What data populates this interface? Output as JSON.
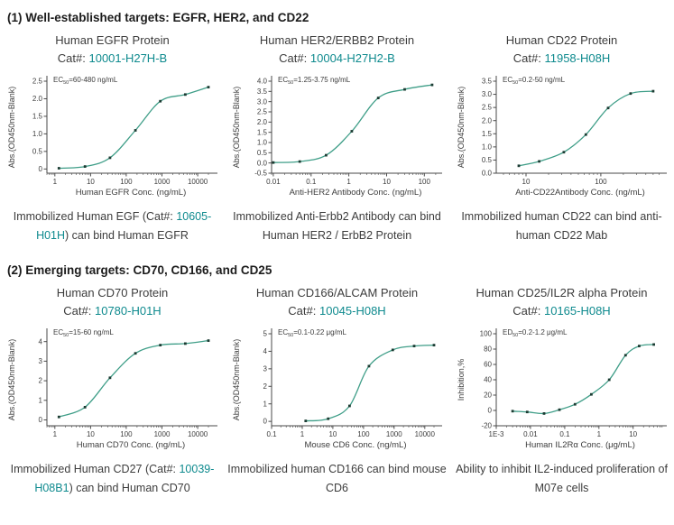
{
  "colors": {
    "curve": "#3f9e88",
    "marker": "#1c3c33",
    "accent_teal": "#0e8a8e",
    "axis": "#4a4a4a",
    "text": "#3c3c3c"
  },
  "sections": [
    {
      "header": "(1) Well-established targets: EGFR, HER2, and CD22",
      "panels": [
        {
          "title": "Human EGFR Protein",
          "cat_label": "Cat#:",
          "cat_number": "10001-H27H-B",
          "caption": {
            "pre": "Immobilized Human EGF (Cat#: ",
            "cat": "10605-H01H",
            "post": ") can bind Human EGFR"
          }
        },
        {
          "title": "Human HER2/ERBB2 Protein",
          "cat_label": "Cat#:",
          "cat_number": "10004-H27H2-B",
          "caption": {
            "pre": "Immobilized Anti-Erbb2 Antibody can bind Human HER2 / ErbB2 Protein",
            "cat": "",
            "post": ""
          }
        },
        {
          "title": "Human CD22 Protein",
          "cat_label": "Cat#:",
          "cat_number": "11958-H08H",
          "caption": {
            "pre": "Immobilized human CD22 can bind anti-human CD22 Mab",
            "cat": "",
            "post": ""
          }
        }
      ]
    },
    {
      "header": "(2) Emerging targets: CD70, CD166, and CD25",
      "panels": [
        {
          "title": "Human CD70 Protein",
          "cat_label": "Cat#:",
          "cat_number": "10780-H01H",
          "caption": {
            "pre": "Immobilized Human CD27 (Cat#: ",
            "cat": "10039-H08B1",
            "post": ") can bind Human CD70"
          }
        },
        {
          "title": "Human CD166/ALCAM Protein",
          "cat_label": "Cat#:",
          "cat_number": "10045-H08H",
          "caption": {
            "pre": "Immobilized human CD166 can bind mouse CD6",
            "cat": "",
            "post": ""
          }
        },
        {
          "title": "Human CD25/IL2R alpha Protein",
          "cat_label": "Cat#:",
          "cat_number": "10165-H08H",
          "caption": {
            "pre": "Ability to inhibit IL2-induced proliferation of M07e cells",
            "cat": "",
            "post": ""
          }
        }
      ]
    }
  ],
  "chart_data": [
    {
      "type": "line",
      "title": "Human EGFR Protein ELISA binding curve",
      "ec_label": {
        "pre": "EC",
        "sub": "50",
        "rest": "=60-480 ng/mL"
      },
      "xlabel": "Human EGFR Conc. (ng/mL)",
      "ylabel": "Abs.(OD450nm-Blank)",
      "xscale": "log",
      "xlim": [
        0.6,
        30000
      ],
      "ylim": [
        -0.12,
        2.5
      ],
      "xticks": [
        {
          "v": 1,
          "l": "1"
        },
        {
          "v": 10,
          "l": "10"
        },
        {
          "v": 100,
          "l": "100"
        },
        {
          "v": 1000,
          "l": "1000"
        },
        {
          "v": 10000,
          "l": "10000"
        }
      ],
      "yticks": [
        {
          "v": 0,
          "l": "0"
        },
        {
          "v": 0.5,
          "l": "0.5"
        },
        {
          "v": 1,
          "l": "1.0"
        },
        {
          "v": 1.5,
          "l": "1.5"
        },
        {
          "v": 2,
          "l": "2.0"
        },
        {
          "v": 2.5,
          "l": "2.5"
        }
      ],
      "points": [
        [
          1.3,
          0.02
        ],
        [
          7,
          0.07
        ],
        [
          35,
          0.32
        ],
        [
          180,
          1.1
        ],
        [
          900,
          1.93
        ],
        [
          4500,
          2.12
        ],
        [
          20000,
          2.33
        ]
      ]
    },
    {
      "type": "line",
      "title": "Human HER2/ERBB2 Protein ELISA binding curve",
      "ec_label": {
        "pre": "EC",
        "sub": "50",
        "rest": "=1.25-3.75 ng/mL"
      },
      "xlabel": "Anti-HER2 Antibody Conc. (ng/mL)",
      "ylabel": "Abs.(OD450nm-Blank)",
      "xscale": "log",
      "xlim": [
        0.009,
        250
      ],
      "ylim": [
        -0.5,
        4.0
      ],
      "xticks": [
        {
          "v": 0.01,
          "l": "0.01"
        },
        {
          "v": 0.1,
          "l": "0.1"
        },
        {
          "v": 1,
          "l": "1"
        },
        {
          "v": 10,
          "l": "10"
        },
        {
          "v": 100,
          "l": "100"
        }
      ],
      "yticks": [
        {
          "v": -0.5,
          "l": "-0.5"
        },
        {
          "v": 0,
          "l": "0.0"
        },
        {
          "v": 0.5,
          "l": "0.5"
        },
        {
          "v": 1,
          "l": "1.0"
        },
        {
          "v": 1.5,
          "l": "1.5"
        },
        {
          "v": 2,
          "l": "2.0"
        },
        {
          "v": 2.5,
          "l": "2.5"
        },
        {
          "v": 3,
          "l": "3.0"
        },
        {
          "v": 3.5,
          "l": "3.5"
        },
        {
          "v": 4,
          "l": "4.0"
        }
      ],
      "points": [
        [
          0.01,
          0.02
        ],
        [
          0.05,
          0.07
        ],
        [
          0.25,
          0.38
        ],
        [
          1.2,
          1.55
        ],
        [
          6,
          3.18
        ],
        [
          30,
          3.6
        ],
        [
          160,
          3.82
        ]
      ]
    },
    {
      "type": "line",
      "title": "Human CD22 Protein ELISA binding curve",
      "ec_label": {
        "pre": "EC",
        "sub": "50",
        "rest": "=0.2-50 ng/mL"
      },
      "xlabel": "Anti-CD22Antibody Conc. (ng/mL)",
      "ylabel": "Abs.(OD450nm-Blank)",
      "xscale": "log",
      "xlim": [
        4,
        700
      ],
      "ylim": [
        0,
        3.5
      ],
      "xticks": [
        {
          "v": 10,
          "l": "10"
        },
        {
          "v": 100,
          "l": "100"
        }
      ],
      "yticks": [
        {
          "v": 0,
          "l": "0.0"
        },
        {
          "v": 0.5,
          "l": "0.5"
        },
        {
          "v": 1,
          "l": "1.0"
        },
        {
          "v": 1.5,
          "l": "1.5"
        },
        {
          "v": 2,
          "l": "2.0"
        },
        {
          "v": 2.5,
          "l": "2.5"
        },
        {
          "v": 3,
          "l": "3.0"
        },
        {
          "v": 3.5,
          "l": "3.5"
        }
      ],
      "points": [
        [
          8,
          0.28
        ],
        [
          15,
          0.45
        ],
        [
          32,
          0.8
        ],
        [
          63,
          1.47
        ],
        [
          125,
          2.48
        ],
        [
          250,
          3.03
        ],
        [
          500,
          3.12
        ]
      ]
    },
    {
      "type": "line",
      "title": "Human CD70 Protein ELISA binding curve",
      "ec_label": {
        "pre": "EC",
        "sub": "50",
        "rest": "=15-60 ng/mL"
      },
      "xlabel": "Human CD70 Conc. (ng/mL)",
      "ylabel": "Abs.(OD450nm-Blank)",
      "xscale": "log",
      "xlim": [
        0.6,
        30000
      ],
      "ylim": [
        -0.3,
        4.4
      ],
      "xticks": [
        {
          "v": 1,
          "l": "1"
        },
        {
          "v": 10,
          "l": "10"
        },
        {
          "v": 100,
          "l": "100"
        },
        {
          "v": 1000,
          "l": "1000"
        },
        {
          "v": 10000,
          "l": "10000"
        }
      ],
      "yticks": [
        {
          "v": 0,
          "l": "0"
        },
        {
          "v": 1,
          "l": "1"
        },
        {
          "v": 2,
          "l": "2"
        },
        {
          "v": 3,
          "l": "3"
        },
        {
          "v": 4,
          "l": "4"
        }
      ],
      "points": [
        [
          1.3,
          0.15
        ],
        [
          7,
          0.65
        ],
        [
          35,
          2.15
        ],
        [
          180,
          3.4
        ],
        [
          900,
          3.82
        ],
        [
          4500,
          3.9
        ],
        [
          20000,
          4.05
        ]
      ]
    },
    {
      "type": "line",
      "title": "Human CD166/ALCAM Protein ELISA binding curve",
      "ec_label": {
        "pre": "EC",
        "sub": "50",
        "rest": "=0.1-0.22 μg/mL"
      },
      "xlabel": "Mouse CD6 Conc. (ng/mL)",
      "ylabel": "Abs.(OD450nm-Blank)",
      "xscale": "log",
      "xlim": [
        0.1,
        30000
      ],
      "ylim": [
        -0.25,
        5
      ],
      "xticks": [
        {
          "v": 0.1,
          "l": "0.1"
        },
        {
          "v": 1,
          "l": "1"
        },
        {
          "v": 10,
          "l": "10"
        },
        {
          "v": 100,
          "l": "100"
        },
        {
          "v": 1000,
          "l": "1000"
        },
        {
          "v": 10000,
          "l": "10000"
        }
      ],
      "yticks": [
        {
          "v": 0,
          "l": "0"
        },
        {
          "v": 1,
          "l": "1"
        },
        {
          "v": 2,
          "l": "2"
        },
        {
          "v": 3,
          "l": "3"
        },
        {
          "v": 4,
          "l": "4"
        },
        {
          "v": 5,
          "l": "5"
        }
      ],
      "points": [
        [
          1.3,
          0.03
        ],
        [
          7,
          0.15
        ],
        [
          35,
          0.88
        ],
        [
          150,
          3.15
        ],
        [
          900,
          4.08
        ],
        [
          4500,
          4.3
        ],
        [
          20000,
          4.35
        ]
      ]
    },
    {
      "type": "line",
      "title": "Human CD25/IL2R alpha Protein inhibition curve",
      "ec_label": {
        "pre": "ED",
        "sub": "50",
        "rest": "=0.2-1.2 μg/mL"
      },
      "xlabel": "Human IL2Rα Conc. (μg/mL)",
      "ylabel": "Inhibition,%",
      "xscale": "log",
      "xlim": [
        0.001,
        80
      ],
      "ylim": [
        -20,
        100
      ],
      "xticks": [
        {
          "v": 0.001,
          "l": "1E-3"
        },
        {
          "v": 0.01,
          "l": "0.01"
        },
        {
          "v": 0.1,
          "l": "0.1"
        },
        {
          "v": 1,
          "l": "1"
        },
        {
          "v": 10,
          "l": "10"
        }
      ],
      "yticks": [
        {
          "v": -20,
          "l": "-20"
        },
        {
          "v": 0,
          "l": "0"
        },
        {
          "v": 20,
          "l": "20"
        },
        {
          "v": 40,
          "l": "40"
        },
        {
          "v": 60,
          "l": "60"
        },
        {
          "v": 80,
          "l": "80"
        },
        {
          "v": 100,
          "l": "100"
        }
      ],
      "points": [
        [
          0.003,
          -1
        ],
        [
          0.008,
          -2
        ],
        [
          0.025,
          -4
        ],
        [
          0.07,
          1
        ],
        [
          0.2,
          8
        ],
        [
          0.6,
          21
        ],
        [
          2,
          40
        ],
        [
          6,
          72
        ],
        [
          15,
          84
        ],
        [
          40,
          86
        ]
      ]
    }
  ]
}
